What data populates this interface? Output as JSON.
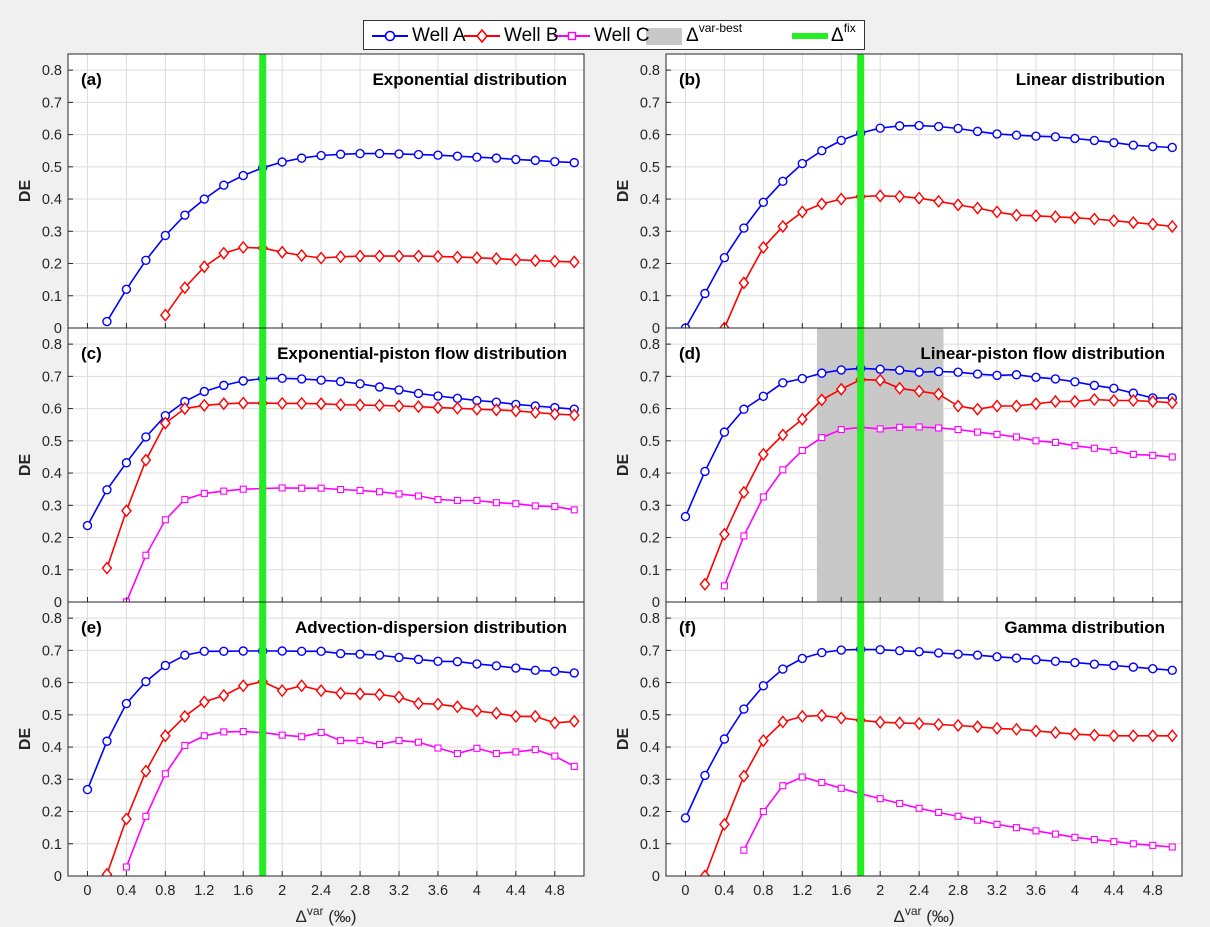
{
  "legend": {
    "well_a": "Well A",
    "well_b": "Well B",
    "well_c": "Well C",
    "var_best_base": "Δ",
    "var_best_sup": "var-best",
    "fix_base": "Δ",
    "fix_sup": "fix"
  },
  "colors": {
    "well_a": "#0000ff",
    "well_b": "#ff0000",
    "well_c": "#ff00ff",
    "var_best": "#c8c8c8",
    "fix": "#22ee22"
  },
  "xlabel": {
    "base": "Δ",
    "sup": "var",
    "unit": " (‰)"
  },
  "ylabel": "DE",
  "chart_data": [
    {
      "type": "line",
      "panel": "(a)",
      "title": "Exponential distribution",
      "ylabel": "DE",
      "xlim": [
        -0.2,
        5.1
      ],
      "ylim": [
        0,
        0.85
      ],
      "xticks": [
        "0",
        "0.4",
        "0.8",
        "1.2",
        "1.6",
        "2",
        "2.4",
        "2.8",
        "3.2",
        "3.6",
        "4",
        "4.4",
        "4.8"
      ],
      "yticks": [
        "0",
        "0.1",
        "0.2",
        "0.3",
        "0.4",
        "0.5",
        "0.6",
        "0.7",
        "0.8"
      ],
      "fix_line": 1.8,
      "x": [
        0,
        0.2,
        0.4,
        0.6,
        0.8,
        1.0,
        1.2,
        1.4,
        1.6,
        1.8,
        2.0,
        2.2,
        2.4,
        2.6,
        2.8,
        3.0,
        3.2,
        3.4,
        3.6,
        3.8,
        4.0,
        4.2,
        4.4,
        4.6,
        4.8,
        5.0
      ],
      "series": [
        {
          "name": "Well A",
          "values": [
            null,
            0.02,
            0.12,
            0.21,
            0.287,
            0.35,
            0.4,
            0.443,
            0.473,
            0.497,
            0.515,
            0.527,
            0.535,
            0.539,
            0.541,
            0.541,
            0.54,
            0.538,
            0.536,
            0.533,
            0.53,
            0.527,
            0.523,
            0.52,
            0.516,
            0.513
          ]
        },
        {
          "name": "Well B",
          "values": [
            null,
            null,
            null,
            null,
            0.04,
            0.125,
            0.19,
            0.232,
            0.25,
            0.248,
            0.235,
            0.225,
            0.217,
            0.221,
            0.223,
            0.223,
            0.223,
            0.223,
            0.222,
            0.22,
            0.218,
            0.215,
            0.212,
            0.209,
            0.207,
            0.205
          ]
        }
      ]
    },
    {
      "type": "line",
      "panel": "(b)",
      "title": "Linear distribution",
      "ylabel": "DE",
      "xlim": [
        -0.2,
        5.1
      ],
      "ylim": [
        0,
        0.85
      ],
      "xticks": [
        "0",
        "0.4",
        "0.8",
        "1.2",
        "1.6",
        "2",
        "2.4",
        "2.8",
        "3.2",
        "3.6",
        "4",
        "4.4",
        "4.8"
      ],
      "yticks": [
        "0",
        "0.1",
        "0.2",
        "0.3",
        "0.4",
        "0.5",
        "0.6",
        "0.7",
        "0.8"
      ],
      "fix_line": 1.8,
      "x": [
        0,
        0.2,
        0.4,
        0.6,
        0.8,
        1.0,
        1.2,
        1.4,
        1.6,
        1.8,
        2.0,
        2.2,
        2.4,
        2.6,
        2.8,
        3.0,
        3.2,
        3.4,
        3.6,
        3.8,
        4.0,
        4.2,
        4.4,
        4.6,
        4.8,
        5.0
      ],
      "series": [
        {
          "name": "Well A",
          "values": [
            0.0,
            0.107,
            0.218,
            0.31,
            0.39,
            0.455,
            0.51,
            0.55,
            0.582,
            0.605,
            0.62,
            0.627,
            0.628,
            0.625,
            0.619,
            0.61,
            0.602,
            0.598,
            0.595,
            0.593,
            0.588,
            0.582,
            0.575,
            0.567,
            0.563,
            0.56
          ]
        },
        {
          "name": "Well B",
          "values": [
            null,
            null,
            0.0,
            0.14,
            0.25,
            0.315,
            0.36,
            0.385,
            0.4,
            0.408,
            0.41,
            0.408,
            0.403,
            0.393,
            0.382,
            0.372,
            0.36,
            0.35,
            0.348,
            0.345,
            0.342,
            0.338,
            0.333,
            0.327,
            0.322,
            0.315
          ]
        }
      ]
    },
    {
      "type": "line",
      "panel": "(c)",
      "title": "Exponential-piston flow distribution",
      "ylabel": "DE",
      "xlim": [
        -0.2,
        5.1
      ],
      "ylim": [
        0,
        0.85
      ],
      "xticks": [
        "0",
        "0.4",
        "0.8",
        "1.2",
        "1.6",
        "2",
        "2.4",
        "2.8",
        "3.2",
        "3.6",
        "4",
        "4.4",
        "4.8"
      ],
      "yticks": [
        "0",
        "0.1",
        "0.2",
        "0.3",
        "0.4",
        "0.5",
        "0.6",
        "0.7",
        "0.8"
      ],
      "fix_line": 1.8,
      "x": [
        0,
        0.2,
        0.4,
        0.6,
        0.8,
        1.0,
        1.2,
        1.4,
        1.6,
        1.8,
        2.0,
        2.2,
        2.4,
        2.6,
        2.8,
        3.0,
        3.2,
        3.4,
        3.6,
        3.8,
        4.0,
        4.2,
        4.4,
        4.6,
        4.8,
        5.0
      ],
      "series": [
        {
          "name": "Well A",
          "values": [
            0.237,
            0.348,
            0.432,
            0.512,
            0.578,
            0.622,
            0.653,
            0.672,
            0.686,
            0.693,
            0.694,
            0.692,
            0.688,
            0.684,
            0.677,
            0.667,
            0.658,
            0.647,
            0.639,
            0.632,
            0.625,
            0.62,
            0.613,
            0.608,
            0.603,
            0.598
          ]
        },
        {
          "name": "Well B",
          "values": [
            null,
            0.105,
            0.283,
            0.44,
            0.555,
            0.6,
            0.61,
            0.615,
            0.617,
            0.617,
            0.616,
            0.616,
            0.615,
            0.612,
            0.611,
            0.61,
            0.608,
            0.606,
            0.603,
            0.601,
            0.598,
            0.596,
            0.593,
            0.588,
            0.583,
            0.58
          ]
        },
        {
          "name": "Well C",
          "values": [
            null,
            null,
            0.0,
            0.145,
            0.255,
            0.318,
            0.337,
            0.344,
            0.35,
            0.352,
            0.354,
            0.353,
            0.353,
            0.349,
            0.346,
            0.342,
            0.335,
            0.329,
            0.318,
            0.315,
            0.315,
            0.308,
            0.305,
            0.298,
            0.296,
            0.286
          ]
        }
      ]
    },
    {
      "type": "line",
      "panel": "(d)",
      "title": "Linear-piston flow distribution",
      "ylabel": "DE",
      "xlim": [
        -0.2,
        5.1
      ],
      "ylim": [
        0,
        0.85
      ],
      "xticks": [
        "0",
        "0.4",
        "0.8",
        "1.2",
        "1.6",
        "2",
        "2.4",
        "2.8",
        "3.2",
        "3.6",
        "4",
        "4.4",
        "4.8"
      ],
      "yticks": [
        "0",
        "0.1",
        "0.2",
        "0.3",
        "0.4",
        "0.5",
        "0.6",
        "0.7",
        "0.8"
      ],
      "fix_line": 1.8,
      "var_best_range": [
        1.35,
        2.65
      ],
      "x": [
        0,
        0.2,
        0.4,
        0.6,
        0.8,
        1.0,
        1.2,
        1.4,
        1.6,
        1.8,
        2.0,
        2.2,
        2.4,
        2.6,
        2.8,
        3.0,
        3.2,
        3.4,
        3.6,
        3.8,
        4.0,
        4.2,
        4.4,
        4.6,
        4.8,
        5.0
      ],
      "series": [
        {
          "name": "Well A",
          "values": [
            0.265,
            0.405,
            0.527,
            0.598,
            0.638,
            0.68,
            0.693,
            0.71,
            0.72,
            0.725,
            0.722,
            0.719,
            0.713,
            0.715,
            0.713,
            0.707,
            0.703,
            0.705,
            0.697,
            0.692,
            0.683,
            0.672,
            0.663,
            0.648,
            0.633,
            0.633
          ]
        },
        {
          "name": "Well B",
          "values": [
            null,
            0.055,
            0.21,
            0.34,
            0.458,
            0.518,
            0.567,
            0.627,
            0.66,
            0.69,
            0.688,
            0.663,
            0.654,
            0.645,
            0.608,
            0.598,
            0.608,
            0.608,
            0.615,
            0.622,
            0.622,
            0.628,
            0.625,
            0.625,
            0.622,
            0.618
          ]
        },
        {
          "name": "Well C",
          "values": [
            null,
            null,
            0.05,
            0.205,
            0.326,
            0.41,
            0.47,
            0.51,
            0.535,
            0.542,
            0.537,
            0.542,
            0.543,
            0.54,
            0.535,
            0.527,
            0.52,
            0.512,
            0.5,
            0.495,
            0.485,
            0.477,
            0.47,
            0.458,
            0.455,
            0.45
          ]
        }
      ]
    },
    {
      "type": "line",
      "panel": "(e)",
      "title": "Advection-dispersion distribution",
      "ylabel": "DE",
      "xlim": [
        -0.2,
        5.1
      ],
      "ylim": [
        0,
        0.85
      ],
      "xticks": [
        "0",
        "0.4",
        "0.8",
        "1.2",
        "1.6",
        "2",
        "2.4",
        "2.8",
        "3.2",
        "3.6",
        "4",
        "4.4",
        "4.8"
      ],
      "yticks": [
        "0",
        "0.1",
        "0.2",
        "0.3",
        "0.4",
        "0.5",
        "0.6",
        "0.7",
        "0.8"
      ],
      "fix_line": 1.8,
      "x": [
        0,
        0.2,
        0.4,
        0.6,
        0.8,
        1.0,
        1.2,
        1.4,
        1.6,
        1.8,
        2.0,
        2.2,
        2.4,
        2.6,
        2.8,
        3.0,
        3.2,
        3.4,
        3.6,
        3.8,
        4.0,
        4.2,
        4.4,
        4.6,
        4.8,
        5.0
      ],
      "series": [
        {
          "name": "Well A",
          "values": [
            0.268,
            0.418,
            0.535,
            0.603,
            0.653,
            0.685,
            0.697,
            0.697,
            0.698,
            0.698,
            0.698,
            0.697,
            0.697,
            0.69,
            0.688,
            0.685,
            0.678,
            0.672,
            0.666,
            0.665,
            0.658,
            0.652,
            0.645,
            0.638,
            0.635,
            0.63
          ]
        },
        {
          "name": "Well B",
          "values": [
            null,
            0.005,
            0.177,
            0.325,
            0.435,
            0.495,
            0.54,
            0.56,
            0.59,
            0.603,
            0.575,
            0.59,
            0.575,
            0.567,
            0.565,
            0.563,
            0.555,
            0.535,
            0.533,
            0.525,
            0.512,
            0.505,
            0.495,
            0.495,
            0.475,
            0.48
          ]
        },
        {
          "name": "Well C",
          "values": [
            null,
            null,
            0.028,
            0.185,
            0.317,
            0.405,
            0.435,
            0.447,
            0.448,
            0.445,
            0.437,
            0.432,
            0.445,
            0.42,
            0.42,
            0.408,
            0.42,
            0.415,
            0.397,
            0.38,
            0.396,
            0.38,
            0.385,
            0.392,
            0.372,
            0.34
          ]
        }
      ]
    },
    {
      "type": "line",
      "panel": "(f)",
      "title": "Gamma distribution",
      "ylabel": "DE",
      "xlim": [
        -0.2,
        5.1
      ],
      "ylim": [
        0,
        0.85
      ],
      "xticks": [
        "0",
        "0.4",
        "0.8",
        "1.2",
        "1.6",
        "2",
        "2.4",
        "2.8",
        "3.2",
        "3.6",
        "4",
        "4.4",
        "4.8"
      ],
      "yticks": [
        "0",
        "0.1",
        "0.2",
        "0.3",
        "0.4",
        "0.5",
        "0.6",
        "0.7",
        "0.8"
      ],
      "fix_line": 1.8,
      "x": [
        0,
        0.2,
        0.4,
        0.6,
        0.8,
        1.0,
        1.2,
        1.4,
        1.6,
        1.8,
        2.0,
        2.2,
        2.4,
        2.6,
        2.8,
        3.0,
        3.2,
        3.4,
        3.6,
        3.8,
        4.0,
        4.2,
        4.4,
        4.6,
        4.8,
        5.0
      ],
      "series": [
        {
          "name": "Well A",
          "values": [
            0.18,
            0.312,
            0.425,
            0.518,
            0.59,
            0.642,
            0.675,
            0.693,
            0.701,
            0.703,
            0.702,
            0.699,
            0.696,
            0.692,
            0.688,
            0.685,
            0.68,
            0.676,
            0.671,
            0.666,
            0.662,
            0.657,
            0.653,
            0.648,
            0.643,
            0.638
          ]
        },
        {
          "name": "Well B",
          "values": [
            null,
            0.0,
            0.16,
            0.31,
            0.42,
            0.478,
            0.495,
            0.498,
            0.49,
            0.483,
            0.477,
            0.475,
            0.473,
            0.47,
            0.467,
            0.463,
            0.458,
            0.455,
            0.45,
            0.445,
            0.44,
            0.437,
            0.435,
            0.435,
            0.435,
            0.435
          ]
        },
        {
          "name": "Well C",
          "values": [
            null,
            null,
            null,
            0.08,
            0.2,
            0.28,
            0.307,
            0.29,
            0.272,
            0.255,
            0.24,
            0.225,
            0.21,
            0.197,
            0.185,
            0.173,
            0.16,
            0.15,
            0.14,
            0.13,
            0.12,
            0.113,
            0.107,
            0.1,
            0.095,
            0.09
          ]
        }
      ]
    }
  ]
}
